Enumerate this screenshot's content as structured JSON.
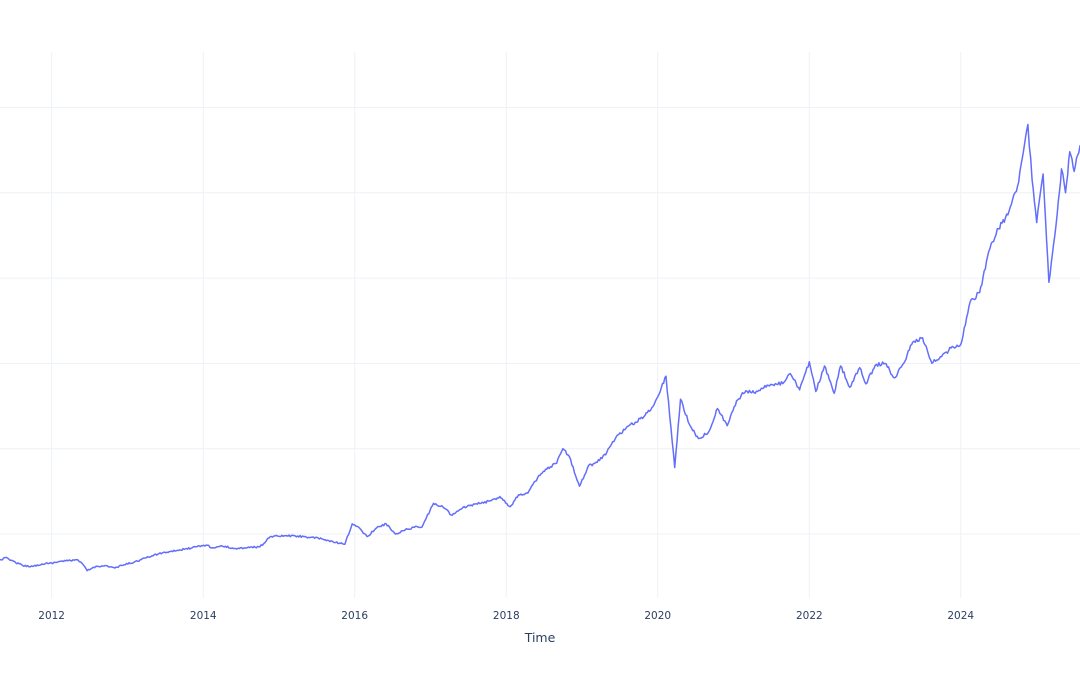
{
  "chart_data": {
    "type": "line",
    "title": "",
    "xlabel": "Time",
    "ylabel": "",
    "x_axis_type": "date",
    "xlim": [
      "2011-04-27",
      "2025-07-29"
    ],
    "ylim": [
      0.75,
      7.15
    ],
    "y_gridlines": [
      1.5,
      2.5,
      3.5,
      4.5,
      5.5,
      6.5
    ],
    "show_y_tick_labels": false,
    "x_ticks": [
      {
        "value": "2012-01-01",
        "label": "2012"
      },
      {
        "value": "2014-01-01",
        "label": "2014"
      },
      {
        "value": "2016-01-01",
        "label": "2016"
      },
      {
        "value": "2018-01-01",
        "label": "2018"
      },
      {
        "value": "2020-01-01",
        "label": "2020"
      },
      {
        "value": "2022-01-01",
        "label": "2022"
      },
      {
        "value": "2024-01-01",
        "label": "2024"
      }
    ],
    "grid": true,
    "legend": "none",
    "series": [
      {
        "color": "#636efa",
        "x": [
          "2011-04-27",
          "2011-06-01",
          "2011-07-01",
          "2011-08-15",
          "2011-10-01",
          "2011-11-15",
          "2012-01-01",
          "2012-02-15",
          "2012-04-01",
          "2012-05-01",
          "2012-06-01",
          "2012-06-20",
          "2012-08-01",
          "2012-09-15",
          "2012-11-01",
          "2012-12-15",
          "2013-02-01",
          "2013-04-01",
          "2013-06-01",
          "2013-08-01",
          "2013-10-01",
          "2013-12-01",
          "2014-01-15",
          "2014-02-15",
          "2014-04-01",
          "2014-06-01",
          "2014-08-01",
          "2014-10-01",
          "2014-11-01",
          "2014-11-20",
          "2015-02-01",
          "2015-05-01",
          "2015-08-01",
          "2015-10-01",
          "2015-11-15",
          "2015-12-20",
          "2016-02-01",
          "2016-03-01",
          "2016-04-15",
          "2016-06-01",
          "2016-07-15",
          "2016-09-01",
          "2016-10-15",
          "2016-11-20",
          "2017-01-15",
          "2017-03-01",
          "2017-04-15",
          "2017-06-01",
          "2017-07-15",
          "2017-09-01",
          "2017-10-20",
          "2017-12-01",
          "2018-01-20",
          "2018-03-01",
          "2018-04-15",
          "2018-06-01",
          "2018-07-15",
          "2018-09-01",
          "2018-10-01",
          "2018-11-01",
          "2018-12-20",
          "2019-02-01",
          "2019-03-15",
          "2019-05-01",
          "2019-06-15",
          "2019-08-01",
          "2019-09-15",
          "2019-11-01",
          "2019-12-15",
          "2020-02-10",
          "2020-03-23",
          "2020-04-20",
          "2020-06-01",
          "2020-07-15",
          "2020-09-01",
          "2020-10-15",
          "2020-12-01",
          "2021-01-15",
          "2021-03-01",
          "2021-04-15",
          "2021-06-01",
          "2021-07-15",
          "2021-09-01",
          "2021-10-01",
          "2021-11-15",
          "2022-01-01",
          "2022-02-01",
          "2022-03-15",
          "2022-05-01",
          "2022-06-01",
          "2022-07-15",
          "2022-09-01",
          "2022-10-01",
          "2022-11-15",
          "2023-01-01",
          "2023-02-15",
          "2023-04-01",
          "2023-05-15",
          "2023-07-01",
          "2023-08-15",
          "2023-10-01",
          "2023-11-15",
          "2024-01-01",
          "2024-02-15",
          "2024-04-01",
          "2024-05-15",
          "2024-07-01",
          "2024-08-15",
          "2024-10-01",
          "2024-11-20",
          "2024-12-10",
          "2025-01-01",
          "2025-02-01",
          "2025-03-01",
          "2025-04-10",
          "2025-05-01",
          "2025-05-20",
          "2025-06-10",
          "2025-07-01",
          "2025-07-29"
        ],
        "y": [
          1.2,
          1.22,
          1.18,
          1.13,
          1.12,
          1.15,
          1.16,
          1.18,
          1.19,
          1.2,
          1.14,
          1.07,
          1.12,
          1.13,
          1.1,
          1.14,
          1.17,
          1.22,
          1.27,
          1.3,
          1.32,
          1.35,
          1.37,
          1.34,
          1.36,
          1.33,
          1.34,
          1.35,
          1.42,
          1.47,
          1.48,
          1.47,
          1.44,
          1.4,
          1.38,
          1.62,
          1.55,
          1.47,
          1.57,
          1.62,
          1.5,
          1.55,
          1.58,
          1.58,
          1.86,
          1.82,
          1.72,
          1.8,
          1.84,
          1.86,
          1.89,
          1.94,
          1.82,
          1.96,
          1.98,
          2.16,
          2.26,
          2.33,
          2.5,
          2.41,
          2.06,
          2.3,
          2.34,
          2.46,
          2.64,
          2.74,
          2.81,
          2.89,
          3.02,
          3.35,
          2.28,
          3.08,
          2.79,
          2.62,
          2.69,
          2.97,
          2.77,
          3.06,
          3.18,
          3.15,
          3.24,
          3.24,
          3.28,
          3.38,
          3.19,
          3.52,
          3.17,
          3.47,
          3.15,
          3.47,
          3.22,
          3.45,
          3.26,
          3.48,
          3.5,
          3.33,
          3.5,
          3.75,
          3.8,
          3.5,
          3.58,
          3.68,
          3.72,
          4.22,
          4.33,
          4.81,
          5.08,
          5.24,
          5.58,
          6.3,
          5.65,
          5.15,
          5.72,
          4.45,
          5.25,
          5.78,
          5.5,
          5.98,
          5.75,
          6.05
        ]
      }
    ]
  }
}
